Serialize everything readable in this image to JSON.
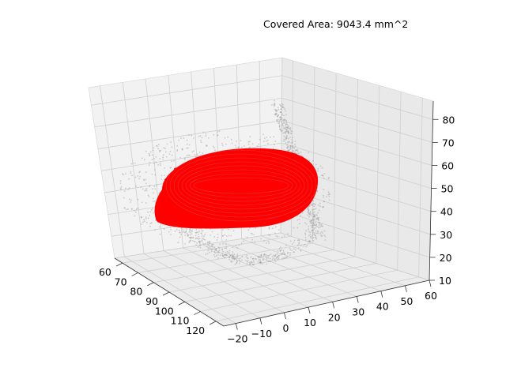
{
  "annotation": "Covered Area: 9043.4 mm^2",
  "chart_data": {
    "type": "scatter",
    "projection": "3d",
    "title": "",
    "xlabel": "",
    "ylabel": "",
    "zlabel": "",
    "xlim": [
      55,
      125
    ],
    "ylim": [
      -25,
      60
    ],
    "zlim": [
      10,
      88
    ],
    "x_ticks": [
      60,
      70,
      80,
      90,
      100,
      110,
      120
    ],
    "y_ticks": [
      -20,
      -10,
      0,
      10,
      20,
      30,
      40,
      50,
      60
    ],
    "z_ticks": [
      10,
      20,
      30,
      40,
      50,
      60,
      70,
      80
    ],
    "x_tick_labels": [
      "60",
      "70",
      "80",
      "90",
      "100",
      "110",
      "120"
    ],
    "y_tick_labels": [
      "−20",
      "−10",
      "0",
      "10",
      "20",
      "30",
      "40",
      "50",
      "60"
    ],
    "z_tick_labels": [
      "10",
      "20",
      "30",
      "40",
      "50",
      "60",
      "70",
      "80"
    ],
    "grid": true,
    "pane_color": "#f2f2f2",
    "series": [
      {
        "role": "reference point cloud",
        "color": "#9a9a9a",
        "marker_size": "small"
      },
      {
        "role": "covered region",
        "color": "#ff0000",
        "marker_size": "large"
      }
    ]
  }
}
